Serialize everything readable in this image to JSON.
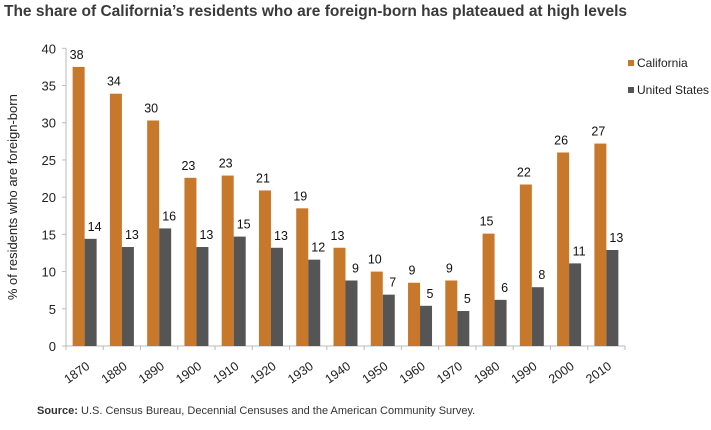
{
  "chart_data": {
    "type": "bar",
    "title": "The share of California’s residents who are foreign-born has plateaued at high levels",
    "xlabel": "",
    "ylabel": "% of residents who are foreign-born",
    "ylim": [
      0,
      40
    ],
    "yticks": [
      0,
      5,
      10,
      15,
      20,
      25,
      30,
      35,
      40
    ],
    "grid": false,
    "legend_position": "right",
    "categories": [
      "1870",
      "1880",
      "1890",
      "1900",
      "1910",
      "1920",
      "1930",
      "1940",
      "1950",
      "1960",
      "1970",
      "1980",
      "1990",
      "2000",
      "2010"
    ],
    "series": [
      {
        "name": "California",
        "color": "#c8782a",
        "values": [
          37.5,
          33.9,
          30.3,
          22.6,
          22.9,
          20.9,
          18.5,
          13.2,
          10.0,
          8.5,
          8.8,
          15.1,
          21.7,
          26.0,
          27.2
        ],
        "labels": [
          "38",
          "34",
          "30",
          "23",
          "23",
          "21",
          "19",
          "13",
          "10",
          "9",
          "9",
          "15",
          "22",
          "26",
          "27"
        ]
      },
      {
        "name": "United States",
        "color": "#555555",
        "values": [
          14.4,
          13.3,
          15.8,
          13.3,
          14.7,
          13.2,
          11.6,
          8.8,
          6.9,
          5.4,
          4.7,
          6.2,
          7.9,
          11.1,
          12.9
        ],
        "labels": [
          "14",
          "13",
          "16",
          "13",
          "15",
          "13",
          "12",
          "9",
          "7",
          "5",
          "5",
          "6",
          "8",
          "11",
          "13"
        ]
      }
    ],
    "source_label": "Source:",
    "source_text": "U.S. Census Bureau, Decennial Censuses and the American Community Survey."
  }
}
